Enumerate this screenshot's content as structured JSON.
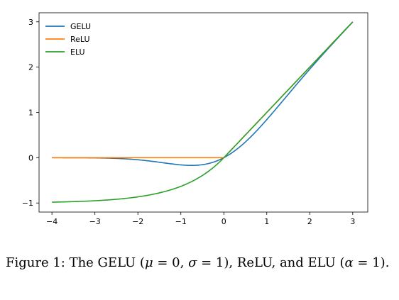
{
  "chart_data": {
    "type": "line",
    "title": "",
    "xlabel": "",
    "ylabel": "",
    "xlim": [
      -4.3,
      3.35
    ],
    "ylim": [
      -1.2,
      3.2
    ],
    "xticks": [
      -4,
      -3,
      -2,
      -1,
      0,
      1,
      2,
      3
    ],
    "xtick_labels": [
      "−4",
      "−3",
      "−2",
      "−1",
      "0",
      "1",
      "2",
      "3"
    ],
    "yticks": [
      -1,
      0,
      1,
      2,
      3
    ],
    "ytick_labels": [
      "−1",
      "0",
      "1",
      "2",
      "3"
    ],
    "grid": false,
    "legend_position": "upper-left",
    "x_range": [
      -4,
      3
    ],
    "series": [
      {
        "name": "GELU",
        "function": "gelu",
        "color": "#1f77b4"
      },
      {
        "name": "ReLU",
        "function": "relu",
        "color": "#ff7f0e"
      },
      {
        "name": "ELU",
        "function": "elu",
        "alpha": 1,
        "color": "#2ca02c"
      }
    ]
  },
  "caption": {
    "text_a": "Figure 1:  The GELU (",
    "math_a": "μ",
    "text_b": " = 0, ",
    "math_b": "σ",
    "text_c": " = 1), ReLU, and ELU (",
    "math_c": "α",
    "text_d": " = 1)."
  }
}
